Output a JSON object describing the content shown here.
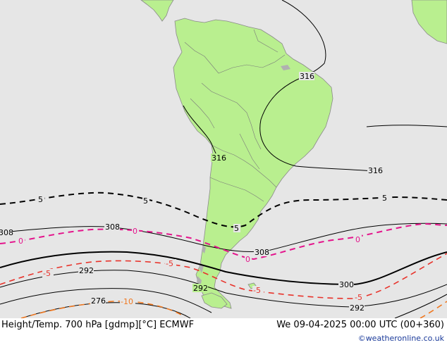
{
  "footer": {
    "title": "Height/Temp. 700 hPa [gdmp][°C] ECMWF",
    "datetime": "We 09-04-2025 00:00 UTC (00+360)",
    "credit": "©weatheronline.co.uk"
  },
  "colors": {
    "ocean": "#e6e6e6",
    "land": "#b9ef8f",
    "height_contour": "#000000",
    "temp_0": "#e4148c",
    "temp_neg5": "#e8322a",
    "temp_neg10": "#f07820"
  },
  "contour_labels": {
    "h316_a": "316",
    "h316_b": "316",
    "h316_c": "316",
    "h308_a": "308",
    "h308_b": "308",
    "h308_c": "308",
    "h300": "300",
    "h292_a": "292",
    "h292_b": "292",
    "h292_c": "292",
    "h276": "276",
    "t5_a": "5",
    "t5_b": "5",
    "t5_c": "5",
    "t5_d": "5",
    "t0_a": "0",
    "t0_b": "0",
    "t0_c": "0",
    "t0_d": "0",
    "tm5_a": "-5",
    "tm5_b": "-5",
    "tm5_c": "-5",
    "tm5_d": "-5",
    "tm10": "-10"
  }
}
